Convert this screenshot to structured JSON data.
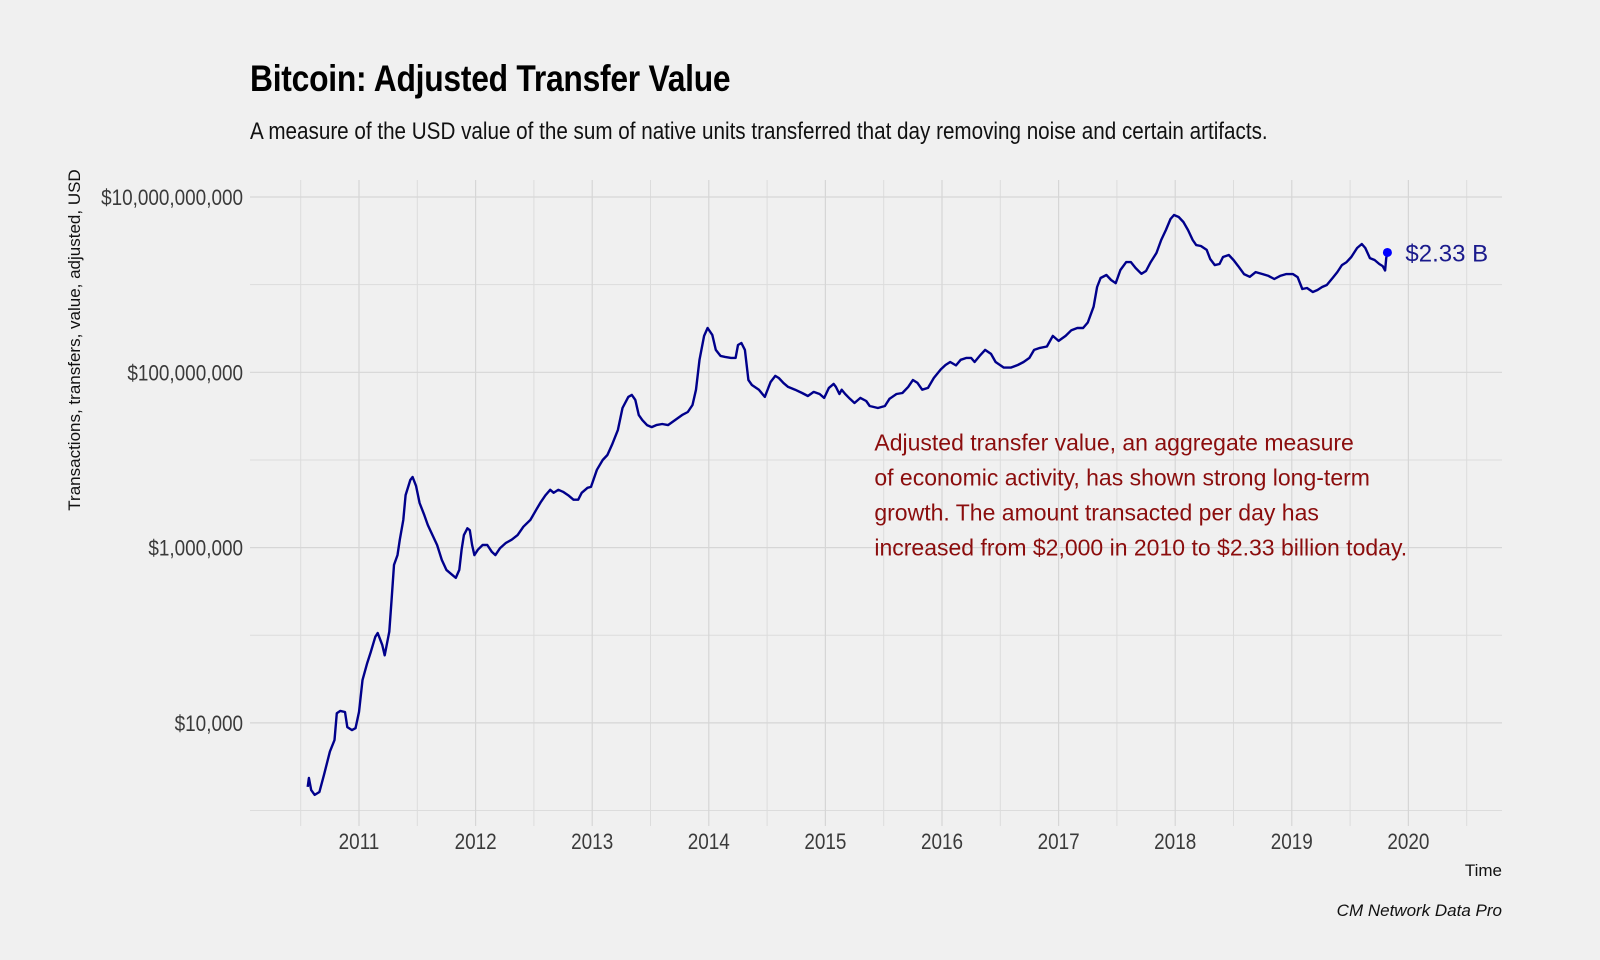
{
  "chart_data": {
    "type": "line",
    "title": "Bitcoin: Adjusted Transfer Value",
    "subtitle": "A measure of the USD value of the sum of native units transferred that day removing noise and certain artifacts.",
    "xlabel": "Time",
    "ylabel": "Transactions, transfers, value, adjusted, USD",
    "caption": "CM Network Data Pro",
    "y_scale": "log10",
    "ylim": [
      700,
      18000000000
    ],
    "xlim": [
      2010.07,
      2020.81
    ],
    "y_ticks": [
      {
        "value": 10000,
        "label": "$10,000"
      },
      {
        "value": 1000000,
        "label": "$1,000,000"
      },
      {
        "value": 100000000,
        "label": "$100,000,000"
      },
      {
        "value": 10000000000,
        "label": "$10,000,000,000"
      }
    ],
    "y_minor_ticks": [
      1000,
      100000,
      10000000,
      1000000000
    ],
    "x_ticks": [
      {
        "value": 2011,
        "label": "2011"
      },
      {
        "value": 2012,
        "label": "2012"
      },
      {
        "value": 2013,
        "label": "2013"
      },
      {
        "value": 2014,
        "label": "2014"
      },
      {
        "value": 2015,
        "label": "2015"
      },
      {
        "value": 2016,
        "label": "2016"
      },
      {
        "value": 2017,
        "label": "2017"
      },
      {
        "value": 2018,
        "label": "2018"
      },
      {
        "value": 2019,
        "label": "2019"
      },
      {
        "value": 2020,
        "label": "2020"
      }
    ],
    "x_minor_ticks": [
      2010.5,
      2011.5,
      2012.5,
      2013.5,
      2014.5,
      2015.5,
      2016.5,
      2017.5,
      2018.5,
      2019.5,
      2020.5
    ],
    "grid": true,
    "line_color": "#00008b",
    "point_color": "#0000ff",
    "annotation_color": "#8b0d0d",
    "end_point": {
      "x": 2019.82,
      "value": 2330000000,
      "label": "$2.33 B"
    },
    "annotation": {
      "x": 2015.42,
      "value": 2500000,
      "lines": [
        "Adjusted transfer value, an aggregate measure",
        "of economic activity, has shown strong long-term",
        "growth. The amount transacted per day has",
        "increased from $2,000 in 2010 to $2.33 billion today."
      ]
    },
    "series": [
      {
        "name": "Adjusted Transfer Value (USD)",
        "points": [
          [
            2010.56,
            1860
          ],
          [
            2010.57,
            2350
          ],
          [
            2010.59,
            1710
          ],
          [
            2010.62,
            1510
          ],
          [
            2010.66,
            1630
          ],
          [
            2010.7,
            2560
          ],
          [
            2010.75,
            4700
          ],
          [
            2010.79,
            6360
          ],
          [
            2010.81,
            12900
          ],
          [
            2010.84,
            13700
          ],
          [
            2010.88,
            13300
          ],
          [
            2010.9,
            8950
          ],
          [
            2010.94,
            8270
          ],
          [
            2010.97,
            8710
          ],
          [
            2011.0,
            13300
          ],
          [
            2011.03,
            30800
          ],
          [
            2011.07,
            48100
          ],
          [
            2011.1,
            64100
          ],
          [
            2011.14,
            95900
          ],
          [
            2011.16,
            106000
          ],
          [
            2011.2,
            77300
          ],
          [
            2011.22,
            59000
          ],
          [
            2011.26,
            110000
          ],
          [
            2011.28,
            255000
          ],
          [
            2011.3,
            634000
          ],
          [
            2011.33,
            822000
          ],
          [
            2011.35,
            1230000
          ],
          [
            2011.38,
            2070000
          ],
          [
            2011.4,
            3970000
          ],
          [
            2011.44,
            5900000
          ],
          [
            2011.46,
            6390000
          ],
          [
            2011.49,
            5030000
          ],
          [
            2011.52,
            3230000
          ],
          [
            2011.56,
            2350000
          ],
          [
            2011.59,
            1810000
          ],
          [
            2011.63,
            1390000
          ],
          [
            2011.67,
            1070000
          ],
          [
            2011.71,
            724000
          ],
          [
            2011.75,
            557000
          ],
          [
            2011.8,
            488000
          ],
          [
            2011.83,
            451000
          ],
          [
            2011.86,
            557000
          ],
          [
            2011.88,
            946000
          ],
          [
            2011.9,
            1390000
          ],
          [
            2011.93,
            1660000
          ],
          [
            2011.95,
            1580000
          ],
          [
            2011.97,
            1070000
          ],
          [
            2011.99,
            822000
          ],
          [
            2012.02,
            946000
          ],
          [
            2012.06,
            1070000
          ],
          [
            2012.1,
            1070000
          ],
          [
            2012.14,
            893000
          ],
          [
            2012.17,
            822000
          ],
          [
            2012.21,
            988000
          ],
          [
            2012.26,
            1130000
          ],
          [
            2012.31,
            1230000
          ],
          [
            2012.36,
            1390000
          ],
          [
            2012.41,
            1730000
          ],
          [
            2012.47,
            2070000
          ],
          [
            2012.52,
            2700000
          ],
          [
            2012.56,
            3320000
          ],
          [
            2012.6,
            3970000
          ],
          [
            2012.64,
            4570000
          ],
          [
            2012.67,
            4220000
          ],
          [
            2012.71,
            4570000
          ],
          [
            2012.75,
            4330000
          ],
          [
            2012.8,
            3900000
          ],
          [
            2012.84,
            3520000
          ],
          [
            2012.88,
            3520000
          ],
          [
            2012.91,
            4220000
          ],
          [
            2012.96,
            4810000
          ],
          [
            2012.99,
            4930000
          ],
          [
            2013.04,
            7730000
          ],
          [
            2013.09,
            10000000
          ],
          [
            2013.13,
            11400000
          ],
          [
            2013.17,
            14900000
          ],
          [
            2013.22,
            22000000
          ],
          [
            2013.26,
            39100000
          ],
          [
            2013.31,
            52400000
          ],
          [
            2013.34,
            55200000
          ],
          [
            2013.37,
            48400000
          ],
          [
            2013.4,
            32500000
          ],
          [
            2013.43,
            28500000
          ],
          [
            2013.47,
            25000000
          ],
          [
            2013.51,
            23700000
          ],
          [
            2013.55,
            25000000
          ],
          [
            2013.6,
            25700000
          ],
          [
            2013.65,
            25000000
          ],
          [
            2013.71,
            28500000
          ],
          [
            2013.77,
            32500000
          ],
          [
            2013.82,
            35200000
          ],
          [
            2013.86,
            42400000
          ],
          [
            2013.89,
            63300000
          ],
          [
            2013.92,
            139000000
          ],
          [
            2013.96,
            260000000
          ],
          [
            2013.99,
            320000000
          ],
          [
            2014.03,
            267000000
          ],
          [
            2014.06,
            180000000
          ],
          [
            2014.1,
            154000000
          ],
          [
            2014.14,
            150000000
          ],
          [
            2014.19,
            146000000
          ],
          [
            2014.23,
            146000000
          ],
          [
            2014.25,
            205000000
          ],
          [
            2014.28,
            216000000
          ],
          [
            2014.31,
            180000000
          ],
          [
            2014.34,
            81700000
          ],
          [
            2014.37,
            71700000
          ],
          [
            2014.43,
            63300000
          ],
          [
            2014.48,
            52400000
          ],
          [
            2014.53,
            77500000
          ],
          [
            2014.57,
            91000000
          ],
          [
            2014.6,
            86200000
          ],
          [
            2014.64,
            75700000
          ],
          [
            2014.68,
            68100000
          ],
          [
            2014.74,
            63300000
          ],
          [
            2014.8,
            58000000
          ],
          [
            2014.85,
            53600000
          ],
          [
            2014.9,
            59800000
          ],
          [
            2014.95,
            56600000
          ],
          [
            2014.99,
            51100000
          ],
          [
            2015.03,
            66300000
          ],
          [
            2015.07,
            73800000
          ],
          [
            2015.09,
            68100000
          ],
          [
            2015.12,
            56600000
          ],
          [
            2015.14,
            63300000
          ],
          [
            2015.17,
            56600000
          ],
          [
            2015.21,
            49800000
          ],
          [
            2015.25,
            44700000
          ],
          [
            2015.3,
            51100000
          ],
          [
            2015.35,
            47000000
          ],
          [
            2015.38,
            41300000
          ],
          [
            2015.45,
            39100000
          ],
          [
            2015.51,
            41300000
          ],
          [
            2015.55,
            49800000
          ],
          [
            2015.61,
            56600000
          ],
          [
            2015.66,
            58000000
          ],
          [
            2015.71,
            68100000
          ],
          [
            2015.75,
            81700000
          ],
          [
            2015.79,
            75700000
          ],
          [
            2015.83,
            63300000
          ],
          [
            2015.88,
            66300000
          ],
          [
            2015.93,
            86200000
          ],
          [
            2015.99,
            108000000
          ],
          [
            2016.03,
            121000000
          ],
          [
            2016.07,
            131000000
          ],
          [
            2016.12,
            120000000
          ],
          [
            2016.16,
            139000000
          ],
          [
            2016.21,
            146000000
          ],
          [
            2016.25,
            146000000
          ],
          [
            2016.28,
            131000000
          ],
          [
            2016.33,
            158000000
          ],
          [
            2016.37,
            180000000
          ],
          [
            2016.42,
            162000000
          ],
          [
            2016.46,
            131000000
          ],
          [
            2016.53,
            113000000
          ],
          [
            2016.59,
            113000000
          ],
          [
            2016.65,
            121000000
          ],
          [
            2016.7,
            131000000
          ],
          [
            2016.75,
            146000000
          ],
          [
            2016.79,
            180000000
          ],
          [
            2016.84,
            190000000
          ],
          [
            2016.9,
            197000000
          ],
          [
            2016.95,
            260000000
          ],
          [
            2017.0,
            228000000
          ],
          [
            2017.06,
            260000000
          ],
          [
            2017.11,
            302000000
          ],
          [
            2017.16,
            320000000
          ],
          [
            2017.21,
            320000000
          ],
          [
            2017.25,
            370000000
          ],
          [
            2017.3,
            560000000
          ],
          [
            2017.33,
            940000000
          ],
          [
            2017.36,
            1190000000
          ],
          [
            2017.41,
            1290000000
          ],
          [
            2017.45,
            1130000000
          ],
          [
            2017.49,
            1040000000
          ],
          [
            2017.53,
            1470000000
          ],
          [
            2017.58,
            1810000000
          ],
          [
            2017.62,
            1810000000
          ],
          [
            2017.66,
            1550000000
          ],
          [
            2017.71,
            1330000000
          ],
          [
            2017.75,
            1430000000
          ],
          [
            2017.79,
            1810000000
          ],
          [
            2017.84,
            2300000000
          ],
          [
            2017.88,
            3230000000
          ],
          [
            2017.92,
            4200000000
          ],
          [
            2017.96,
            5610000000
          ],
          [
            2017.99,
            6230000000
          ],
          [
            2018.03,
            5910000000
          ],
          [
            2018.07,
            5190000000
          ],
          [
            2018.11,
            4200000000
          ],
          [
            2018.15,
            3230000000
          ],
          [
            2018.18,
            2830000000
          ],
          [
            2018.22,
            2760000000
          ],
          [
            2018.27,
            2490000000
          ],
          [
            2018.3,
            1960000000
          ],
          [
            2018.34,
            1670000000
          ],
          [
            2018.38,
            1720000000
          ],
          [
            2018.41,
            2070000000
          ],
          [
            2018.46,
            2180000000
          ],
          [
            2018.5,
            1910000000
          ],
          [
            2018.54,
            1630000000
          ],
          [
            2018.59,
            1320000000
          ],
          [
            2018.64,
            1230000000
          ],
          [
            2018.69,
            1390000000
          ],
          [
            2018.75,
            1320000000
          ],
          [
            2018.8,
            1260000000
          ],
          [
            2018.85,
            1160000000
          ],
          [
            2018.9,
            1260000000
          ],
          [
            2018.95,
            1320000000
          ],
          [
            2019.01,
            1320000000
          ],
          [
            2019.05,
            1220000000
          ],
          [
            2019.09,
            891000000
          ],
          [
            2019.13,
            915000000
          ],
          [
            2019.18,
            824000000
          ],
          [
            2019.22,
            868000000
          ],
          [
            2019.26,
            940000000
          ],
          [
            2019.3,
            990000000
          ],
          [
            2019.35,
            1190000000
          ],
          [
            2019.39,
            1390000000
          ],
          [
            2019.43,
            1670000000
          ],
          [
            2019.47,
            1810000000
          ],
          [
            2019.51,
            2070000000
          ],
          [
            2019.56,
            2620000000
          ],
          [
            2019.6,
            2910000000
          ],
          [
            2019.63,
            2620000000
          ],
          [
            2019.67,
            2010000000
          ],
          [
            2019.71,
            1910000000
          ],
          [
            2019.75,
            1720000000
          ],
          [
            2019.78,
            1630000000
          ],
          [
            2019.8,
            1450000000
          ],
          [
            2019.81,
            2000000000
          ],
          [
            2019.82,
            2330000000
          ]
        ]
      }
    ]
  }
}
